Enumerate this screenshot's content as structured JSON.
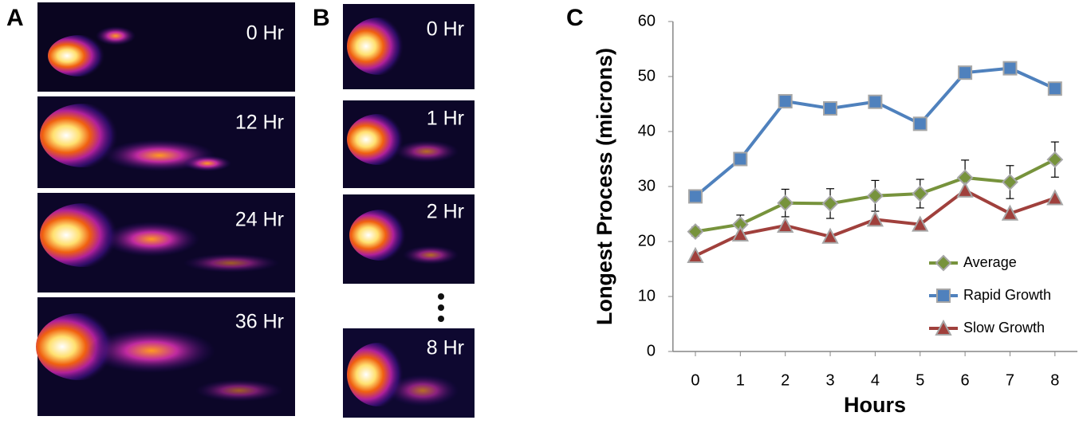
{
  "panels": [
    {
      "label": "A",
      "frames": [
        "0 Hr",
        "12 Hr",
        "24 Hr",
        "36 Hr"
      ]
    },
    {
      "label": "B",
      "frames": [
        "0 Hr",
        "1 Hr",
        "2 Hr",
        "8 Hr"
      ]
    },
    {
      "label": "C"
    }
  ],
  "chart_data": {
    "type": "line",
    "x_label": "Hours",
    "y_label": "Longest Process (microns)",
    "x": [
      0,
      1,
      2,
      3,
      4,
      5,
      6,
      7,
      8
    ],
    "xlim": [
      -0.5,
      8.5
    ],
    "xticks": [
      0,
      1,
      2,
      3,
      4,
      5,
      6,
      7,
      8
    ],
    "ylim": [
      0,
      60
    ],
    "yticks": [
      0,
      10,
      20,
      30,
      40,
      50,
      60
    ],
    "grid": false,
    "legend": "lower right",
    "series": [
      {
        "name": "Average",
        "color": "#77933c",
        "marker": "diamond",
        "values": [
          21.8,
          23.1,
          27.0,
          26.9,
          28.3,
          28.7,
          31.6,
          30.8,
          34.9
        ],
        "errors": [
          0.8,
          1.7,
          2.5,
          2.7,
          2.8,
          2.6,
          3.2,
          3.0,
          3.2
        ]
      },
      {
        "name": "Rapid Growth",
        "color": "#4f81bd",
        "marker": "square",
        "values": [
          28.2,
          35.0,
          45.5,
          44.2,
          45.4,
          41.4,
          50.7,
          51.5,
          47.8
        ]
      },
      {
        "name": "Slow Growth",
        "color": "#a0403c",
        "marker": "triangle",
        "values": [
          17.4,
          21.3,
          22.9,
          20.9,
          24.0,
          23.1,
          29.3,
          25.1,
          27.9
        ]
      }
    ]
  }
}
